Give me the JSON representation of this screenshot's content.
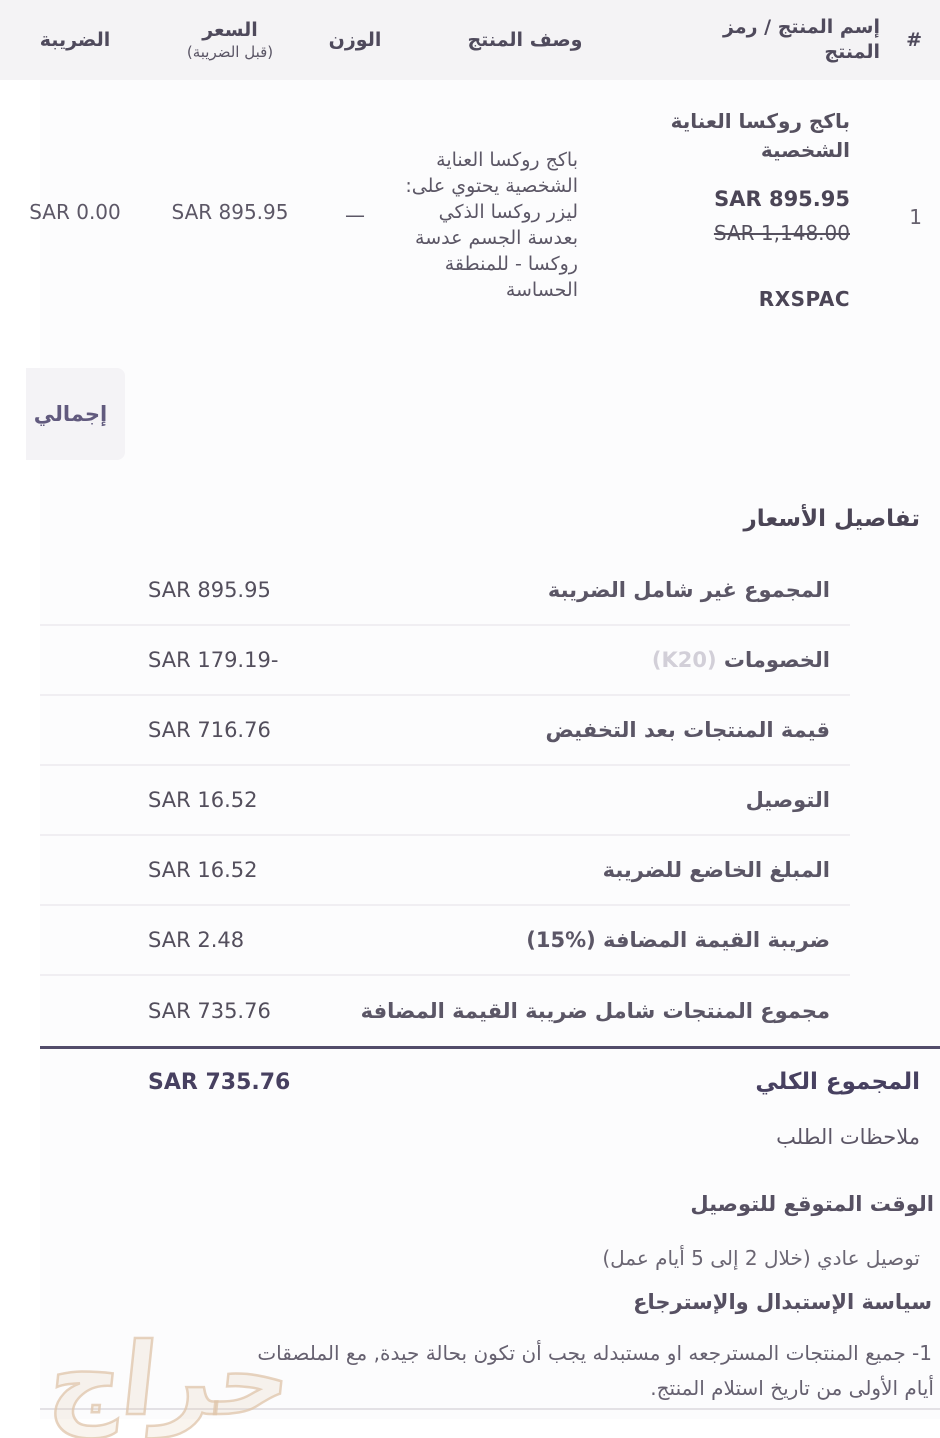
{
  "table": {
    "headers": {
      "num": "#",
      "name": "إسم المنتج / رمز المنتج",
      "desc": "وصف المنتج",
      "weight": "الوزن",
      "price_main": "السعر",
      "price_sub": "(قبل الضريبة)",
      "tax": "الضريبة"
    },
    "row": {
      "num": "1",
      "name": "باكج روكسا العناية الشخصية",
      "price": "SAR 895.95",
      "old_price": "SAR 1,148.00",
      "sku": "RXSPAC",
      "desc": "باكج روكسا العناية الشخصية يحتوي على: ليزر روكسا الذكي بعدسة الجسم عدسة روكسا - للمنطقة الحساسة",
      "weight": "—",
      "unit_price": "SAR 895.95",
      "tax": "SAR 0.00"
    },
    "footer_total_label": "إجمالي"
  },
  "price_details": {
    "title": "تفاصيل الأسعار",
    "rows": [
      {
        "label": "المجموع غير شامل الضريبة",
        "value": "SAR 895.95"
      },
      {
        "label": "الخصومات",
        "label_extra": "(K20)",
        "value": "SAR 179.19-"
      },
      {
        "label": "قيمة المنتجات بعد التخفيض",
        "value": "SAR 716.76"
      },
      {
        "label": "التوصيل",
        "value": "SAR 16.52"
      },
      {
        "label": "المبلغ الخاضع للضريبة",
        "value": "SAR 16.52"
      },
      {
        "label": "ضريبة القيمة المضافة (%15)",
        "value": "SAR 2.48"
      },
      {
        "label": "مجموع المنتجات شامل ضريبة القيمة المضافة",
        "value": "SAR 735.76"
      }
    ],
    "total": {
      "label": "المجموع الكلي",
      "value": "SAR 735.76"
    }
  },
  "notes": {
    "label": "ملاحظات الطلب"
  },
  "delivery": {
    "title": "الوقت المتوقع للتوصيل",
    "text": "توصيل عادي (خلال 2 إلى 5 أيام عمل)"
  },
  "policy": {
    "title": "سياسة الإستبدال والإسترجاع",
    "line1": "1- جميع المنتجات المسترجعه او مستبدله يجب أن تكون بحالة جيدة, مع الملصقات",
    "line2": "أيام الأولى من تاريخ استلام المنتج."
  },
  "watermark": "حراج",
  "colors": {
    "header_band": "#f4f3f5",
    "primary_text": "#56505e",
    "accent_purple": "#474060",
    "muted_badge": "#d2cfd8",
    "watermark_tan": "#dfc4aa"
  }
}
